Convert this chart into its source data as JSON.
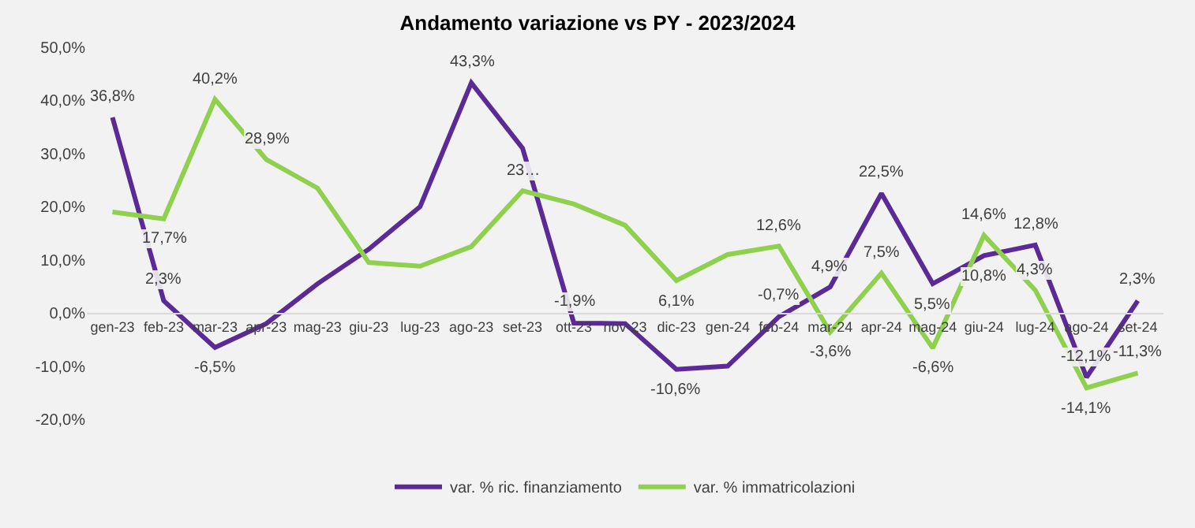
{
  "chart_data": {
    "type": "line",
    "title": "Andamento variazione vs PY - 2023/2024",
    "categories": [
      "gen-23",
      "feb-23",
      "mar-23",
      "apr-23",
      "mag-23",
      "giu-23",
      "lug-23",
      "ago-23",
      "set-23",
      "ott-23",
      "nov-23",
      "dic-23",
      "gen-24",
      "feb-24",
      "mar-24",
      "apr-24",
      "mag-24",
      "giu-24",
      "lug-24",
      "ago-24",
      "set-24"
    ],
    "series": [
      {
        "name": "var. % ric. finanziamento",
        "color": "#5b2a96",
        "values": [
          36.8,
          2.3,
          -6.5,
          -2,
          5.5,
          12,
          20,
          43.3,
          31,
          -1.9,
          -2,
          -10.6,
          -10,
          -0.7,
          4.9,
          22.5,
          5.5,
          10.8,
          12.8,
          -12.1,
          2.3
        ],
        "value_labels": [
          "36,8%",
          "2,3%",
          "-6,5%",
          null,
          null,
          null,
          null,
          "43,3%",
          null,
          "-1,9%",
          null,
          "-10,6%",
          null,
          "-0,7%",
          "4,9%",
          "22,5%",
          "5,5%",
          "10,8%",
          "12,8%",
          "-12,1%",
          "2,3%"
        ]
      },
      {
        "name": "var. % immatricolazioni",
        "color": "#8fd14f",
        "values": [
          19,
          17.7,
          40.2,
          28.9,
          23.5,
          9.5,
          8.8,
          12.5,
          23,
          20.5,
          16.5,
          6.1,
          11,
          12.6,
          -3.6,
          7.5,
          -6.6,
          14.6,
          4.3,
          -14.1,
          -11.3
        ],
        "value_labels": [
          null,
          "17,7%",
          "40,2%",
          "28,9%",
          null,
          null,
          null,
          null,
          "23…",
          null,
          null,
          "6,1%",
          null,
          "12,6%",
          "-3,6%",
          "7,5%",
          "-6,6%",
          "14,6%",
          "4,3%",
          "-14,1%",
          "-11,3%"
        ]
      }
    ],
    "ylim": [
      -20,
      50
    ],
    "yticks": [
      {
        "value": -20,
        "label": "-20,0%"
      },
      {
        "value": -10,
        "label": "-10,0%"
      },
      {
        "value": 0,
        "label": "0,0%"
      },
      {
        "value": 10,
        "label": "10,0%"
      },
      {
        "value": 20,
        "label": "20,0%"
      },
      {
        "value": 30,
        "label": "30,0%"
      },
      {
        "value": 40,
        "label": "40,0%"
      },
      {
        "value": 50,
        "label": "50,0%"
      }
    ],
    "grid": false,
    "legend": "bottom",
    "marker": "none",
    "line_style": "solid"
  }
}
